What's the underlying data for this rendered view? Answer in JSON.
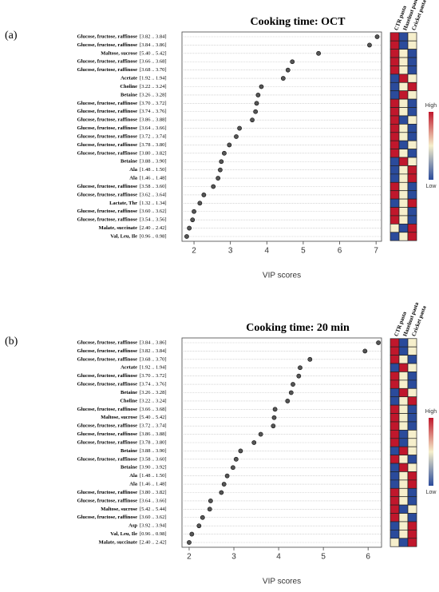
{
  "chart_data": [
    {
      "type": "dot",
      "panel_label": "(a)",
      "title": "Cooking time: OCT",
      "xlabel": "VIP scores",
      "categories": [
        "Glucose, fructose, raffinose",
        "Glucose, fructose, raffinose",
        "Maltose, sucrose",
        "Glucose, fructose, raffinose",
        "Glucose, fructose, raffinose",
        "Acetate",
        "Choline",
        "Betaine",
        "Glucose, fructose, raffinose",
        "Glucose, fructose, raffinose",
        "Glucose, fructose, raffinose",
        "Glucose, fructose, raffinose",
        "Glucose, fructose, raffinose",
        "Glucose, fructose, raffinose",
        "Glucose, fructose, raffinose",
        "Betaine",
        "Ala",
        "Ala",
        "Glucose, fructose, raffinose",
        "Glucose, fructose, raffinose",
        "Lactate, Thr",
        "Glucose, fructose, raffinose",
        "Glucose, fructose, raffinose",
        "Malate, succinate",
        "Val, Leu, Ile"
      ],
      "ranges": [
        "[3.82 .. 3.84]",
        "[3.84 .. 3.86]",
        "[5.40 .. 5.42]",
        "[3.66 .. 3.68]",
        "[3.68 .. 3.70]",
        "[1.92 .. 1.94]",
        "[3.22 .. 3.24]",
        "[3.26 .. 3.28]",
        "[3.70 .. 3.72]",
        "[3.74 .. 3.76]",
        "[3.86 .. 3.88]",
        "[3.64 .. 3.66]",
        "[3.72 .. 3.74]",
        "[3.78 .. 3.80]",
        "[3.80 .. 3.82]",
        "[3.88 .. 3.90]",
        "[1.48 .. 1.50]",
        "[1.46 .. 1.48]",
        "[3.58 .. 3.60]",
        "[3.62 .. 3.64]",
        "[1.32 .. 1.34]",
        "[3.60 .. 3.62]",
        "[3.54 .. 3.56]",
        "[2.40 .. 2.42]",
        "[0.96 .. 0.98]"
      ],
      "values": [
        7.03,
        6.82,
        5.42,
        4.7,
        4.58,
        4.45,
        3.85,
        3.76,
        3.72,
        3.69,
        3.6,
        3.25,
        3.16,
        2.97,
        2.83,
        2.75,
        2.72,
        2.66,
        2.53,
        2.27,
        2.16,
        2.0,
        1.96,
        1.87,
        1.8
      ],
      "color": "#555555",
      "xlim": [
        1.67,
        7.15
      ],
      "xticks": [
        2,
        3,
        4,
        5,
        6,
        7
      ],
      "grid": true,
      "heatmap": {
        "columns": [
          "CTR pasta",
          "Hazelnut pasta",
          "Cricket pasta"
        ],
        "values": [
          [
            1,
            -1,
            0
          ],
          [
            1,
            -1,
            0
          ],
          [
            1,
            0,
            -1
          ],
          [
            1,
            0,
            -1
          ],
          [
            1,
            0,
            -1
          ],
          [
            -1,
            1,
            0
          ],
          [
            -1,
            0,
            1
          ],
          [
            -1,
            1,
            0
          ],
          [
            1,
            0,
            -1
          ],
          [
            1,
            0,
            -1
          ],
          [
            1,
            -1,
            0
          ],
          [
            1,
            0,
            -1
          ],
          [
            1,
            0,
            -1
          ],
          [
            1,
            -1,
            0
          ],
          [
            1,
            0,
            -1
          ],
          [
            -1,
            1,
            0
          ],
          [
            -1,
            0,
            1
          ],
          [
            -1,
            0,
            1
          ],
          [
            1,
            0,
            -1
          ],
          [
            1,
            0,
            -1
          ],
          [
            -1,
            0,
            1
          ],
          [
            1,
            0,
            -1
          ],
          [
            1,
            0,
            -1
          ],
          [
            0,
            -1,
            1
          ],
          [
            -1,
            0,
            1
          ]
        ],
        "colors": [
          "#2b4b9b",
          "#f6efcc",
          "#c0172c"
        ],
        "clim": [
          -1,
          1
        ],
        "colorbar_labels": [
          {
            "value": 1,
            "label": "High"
          },
          {
            "value": -1,
            "label": "Low"
          }
        ]
      }
    },
    {
      "type": "dot",
      "panel_label": "(b)",
      "title": "Cooking time: 20 min",
      "xlabel": "VIP scores",
      "categories": [
        "Glucose, fructose, raffinose",
        "Glucose, fructose, raffinose",
        "Glucose, fructose, raffinose",
        "Acetate",
        "Glucose, fructose, raffinose",
        "Glucose, fructose, raffinose",
        "Betaine",
        "Choline",
        "Glucose, fructose, raffinose",
        "Maltose, sucrose",
        "Glucose, fructose, raffinose",
        "Glucose, fructose, raffinose",
        "Glucose, fructose, raffinose",
        "Betaine",
        "Glucose, fructose, raffinose",
        "Betaine",
        "Ala",
        "Ala",
        "Glucose, fructose, raffinose",
        "Glucose, fructose, raffinose",
        "Maltose, sucrose",
        "Glucose, fructose, raffinose",
        "Asp",
        "Val, Leu, Ile",
        "Malate, succinate"
      ],
      "ranges": [
        "[3.84 .. 3.86]",
        "[3.82 .. 3.84]",
        "[3.68 .. 3.70]",
        "[1.92 .. 1.94]",
        "[3.70 .. 3.72]",
        "[3.74 .. 3.76]",
        "[3.26 .. 3.28]",
        "[3.22 .. 3.24]",
        "[3.66 .. 3.68]",
        "[5.40 .. 5.42]",
        "[3.72 .. 3.74]",
        "[3.86 .. 3.88]",
        "[3.78 .. 3.80]",
        "[3.88 .. 3.90]",
        "[3.58 .. 3.60]",
        "[3.90 .. 3.92]",
        "[1.48 .. 1.50]",
        "[1.46 .. 1.48]",
        "[3.80 .. 3.82]",
        "[3.64 .. 3.66]",
        "[5.42 .. 5.44]",
        "[3.60 .. 3.62]",
        "[3.92 .. 3.94]",
        "[0.96 .. 0.98]",
        "[2.40 .. 2.42]"
      ],
      "values": [
        6.23,
        5.93,
        4.7,
        4.48,
        4.45,
        4.32,
        4.28,
        4.2,
        3.92,
        3.9,
        3.88,
        3.6,
        3.45,
        3.15,
        3.05,
        2.98,
        2.85,
        2.78,
        2.72,
        2.48,
        2.46,
        2.3,
        2.22,
        2.06,
        2.0
      ],
      "color": "#555555",
      "xlim": [
        1.84,
        6.3
      ],
      "xticks": [
        2,
        3,
        4,
        5,
        6
      ],
      "grid": true,
      "heatmap": {
        "columns": [
          "CTR pasta",
          "Hazelnut pasta",
          "Cricket pasta"
        ],
        "values": [
          [
            1,
            -1,
            0
          ],
          [
            1,
            -1,
            0
          ],
          [
            1,
            0,
            -1
          ],
          [
            -1,
            1,
            0
          ],
          [
            1,
            0,
            -1
          ],
          [
            1,
            0,
            -1
          ],
          [
            -1,
            1,
            0
          ],
          [
            -1,
            0,
            1
          ],
          [
            1,
            0,
            -1
          ],
          [
            1,
            0,
            -1
          ],
          [
            1,
            0,
            -1
          ],
          [
            1,
            -1,
            0
          ],
          [
            1,
            -1,
            0
          ],
          [
            -1,
            1,
            0
          ],
          [
            1,
            0,
            -1
          ],
          [
            -1,
            1,
            0
          ],
          [
            -1,
            0,
            1
          ],
          [
            -1,
            0,
            1
          ],
          [
            1,
            0,
            -1
          ],
          [
            1,
            0,
            -1
          ],
          [
            1,
            -1,
            0
          ],
          [
            1,
            0,
            -1
          ],
          [
            -1,
            0,
            1
          ],
          [
            -1,
            0,
            1
          ],
          [
            0,
            -1,
            1
          ]
        ],
        "colors": [
          "#2b4b9b",
          "#f6efcc",
          "#c0172c"
        ],
        "clim": [
          -1,
          1
        ],
        "colorbar_labels": [
          {
            "value": 1,
            "label": "High"
          },
          {
            "value": -1,
            "label": "Low"
          }
        ]
      }
    }
  ]
}
